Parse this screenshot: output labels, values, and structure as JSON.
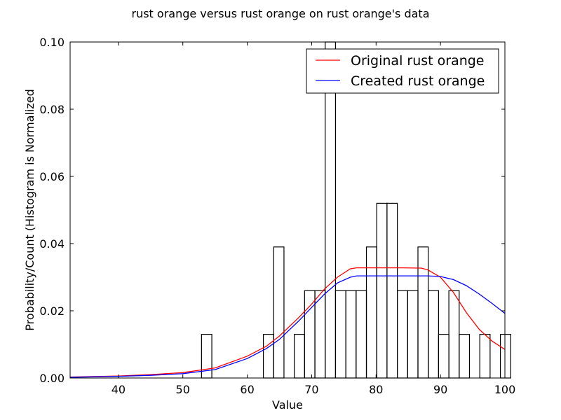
{
  "chart_data": {
    "type": "bar",
    "title": "rust orange versus rust orange on rust orange's data",
    "xlabel": "Value",
    "ylabel": "Probability/Count (Histogram is Normalized",
    "xlim": [
      32.5,
      100
    ],
    "ylim": [
      0,
      0.1
    ],
    "xticks": [
      40,
      50,
      60,
      70,
      80,
      90,
      100
    ],
    "yticks": [
      "0.00",
      "0.02",
      "0.04",
      "0.06",
      "0.08",
      "0.10"
    ],
    "grid": false,
    "legend_position": "top-right",
    "histogram": {
      "bin_width": 1.6,
      "bins": [
        {
          "x0": 52.9,
          "value": 0.013
        },
        {
          "x0": 62.5,
          "value": 0.013
        },
        {
          "x0": 64.1,
          "value": 0.039
        },
        {
          "x0": 67.3,
          "value": 0.013
        },
        {
          "x0": 68.9,
          "value": 0.026
        },
        {
          "x0": 70.5,
          "value": 0.026
        },
        {
          "x0": 72.1,
          "value": 0.1
        },
        {
          "x0": 73.7,
          "value": 0.026
        },
        {
          "x0": 75.3,
          "value": 0.026
        },
        {
          "x0": 76.9,
          "value": 0.026
        },
        {
          "x0": 78.5,
          "value": 0.039
        },
        {
          "x0": 80.1,
          "value": 0.052
        },
        {
          "x0": 81.7,
          "value": 0.052
        },
        {
          "x0": 83.3,
          "value": 0.026
        },
        {
          "x0": 84.9,
          "value": 0.026
        },
        {
          "x0": 86.5,
          "value": 0.039
        },
        {
          "x0": 88.1,
          "value": 0.026
        },
        {
          "x0": 89.7,
          "value": 0.013
        },
        {
          "x0": 91.3,
          "value": 0.026
        },
        {
          "x0": 92.9,
          "value": 0.013
        },
        {
          "x0": 96.1,
          "value": 0.013
        },
        {
          "x0": 99.3,
          "value": 0.013
        }
      ]
    },
    "series": [
      {
        "name": "Original rust orange",
        "color": "#ff0000",
        "points": [
          [
            32.5,
            0.0003
          ],
          [
            40,
            0.0006
          ],
          [
            45,
            0.001
          ],
          [
            50,
            0.0016
          ],
          [
            55,
            0.003
          ],
          [
            60,
            0.0065
          ],
          [
            63,
            0.0095
          ],
          [
            65,
            0.0125
          ],
          [
            68,
            0.018
          ],
          [
            70,
            0.022
          ],
          [
            72,
            0.0265
          ],
          [
            74,
            0.03
          ],
          [
            76,
            0.0325
          ],
          [
            77,
            0.0328
          ],
          [
            80,
            0.0328
          ],
          [
            84,
            0.0328
          ],
          [
            87,
            0.0327
          ],
          [
            88,
            0.0322
          ],
          [
            90,
            0.03
          ],
          [
            92,
            0.0255
          ],
          [
            94,
            0.0195
          ],
          [
            96,
            0.0145
          ],
          [
            98,
            0.011
          ],
          [
            100,
            0.0085
          ]
        ]
      },
      {
        "name": "Created rust orange",
        "color": "#0000ff",
        "points": [
          [
            32.5,
            0.0002
          ],
          [
            40,
            0.0005
          ],
          [
            45,
            0.0008
          ],
          [
            50,
            0.0013
          ],
          [
            55,
            0.0025
          ],
          [
            60,
            0.0058
          ],
          [
            63,
            0.0088
          ],
          [
            65,
            0.0115
          ],
          [
            68,
            0.017
          ],
          [
            70,
            0.021
          ],
          [
            72,
            0.025
          ],
          [
            74,
            0.0283
          ],
          [
            76,
            0.03
          ],
          [
            77,
            0.0304
          ],
          [
            80,
            0.0304
          ],
          [
            85,
            0.0304
          ],
          [
            88,
            0.0304
          ],
          [
            90,
            0.0302
          ],
          [
            92,
            0.0293
          ],
          [
            94,
            0.0275
          ],
          [
            96,
            0.025
          ],
          [
            98,
            0.0222
          ],
          [
            100,
            0.0192
          ]
        ]
      }
    ]
  }
}
